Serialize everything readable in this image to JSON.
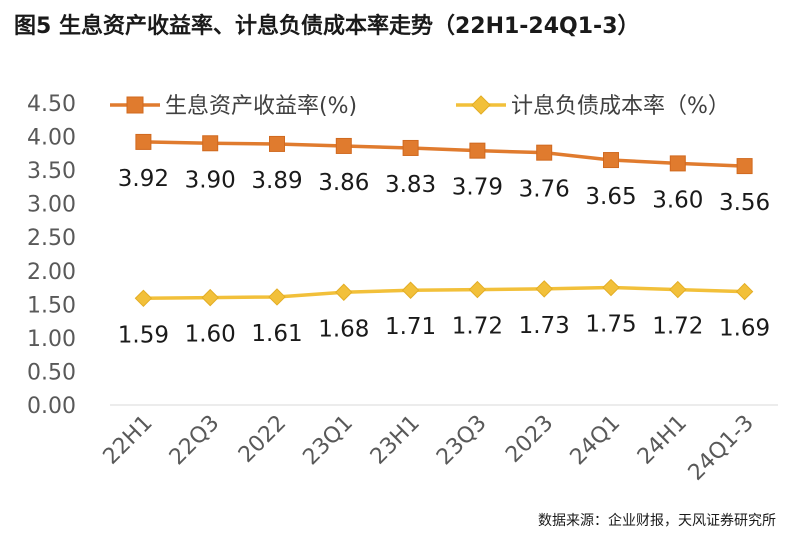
{
  "chart_data": {
    "type": "line",
    "title": "图5 生息资产收益率、计息负债成本率走势（22H1-24Q1-3）",
    "source": "数据来源：企业财报，天风证券研究所",
    "xlabel": "",
    "ylabel": "",
    "ylim": [
      0,
      4.5
    ],
    "yticks": [
      "0.00",
      "0.50",
      "1.00",
      "1.50",
      "2.00",
      "2.50",
      "3.00",
      "3.50",
      "4.00",
      "4.50"
    ],
    "categories": [
      "22H1",
      "22Q3",
      "2022",
      "23Q1",
      "23H1",
      "23Q3",
      "2023",
      "24Q1",
      "24H1",
      "24Q1-3"
    ],
    "legend_position": "top",
    "grid": false,
    "series": [
      {
        "name": "生息资产收益率(%)",
        "color": "#E07B2E",
        "marker": "square",
        "values": [
          3.92,
          3.9,
          3.89,
          3.86,
          3.83,
          3.79,
          3.76,
          3.65,
          3.6,
          3.56
        ],
        "labels": [
          "3.92",
          "3.90",
          "3.89",
          "3.86",
          "3.83",
          "3.79",
          "3.76",
          "3.65",
          "3.60",
          "3.56"
        ]
      },
      {
        "name": "计息负债成本率（%）",
        "color": "#F2C03A",
        "marker": "diamond",
        "values": [
          1.59,
          1.6,
          1.61,
          1.68,
          1.71,
          1.72,
          1.73,
          1.75,
          1.72,
          1.69
        ],
        "labels": [
          "1.59",
          "1.60",
          "1.61",
          "1.68",
          "1.71",
          "1.72",
          "1.73",
          "1.75",
          "1.72",
          "1.69"
        ]
      }
    ]
  }
}
